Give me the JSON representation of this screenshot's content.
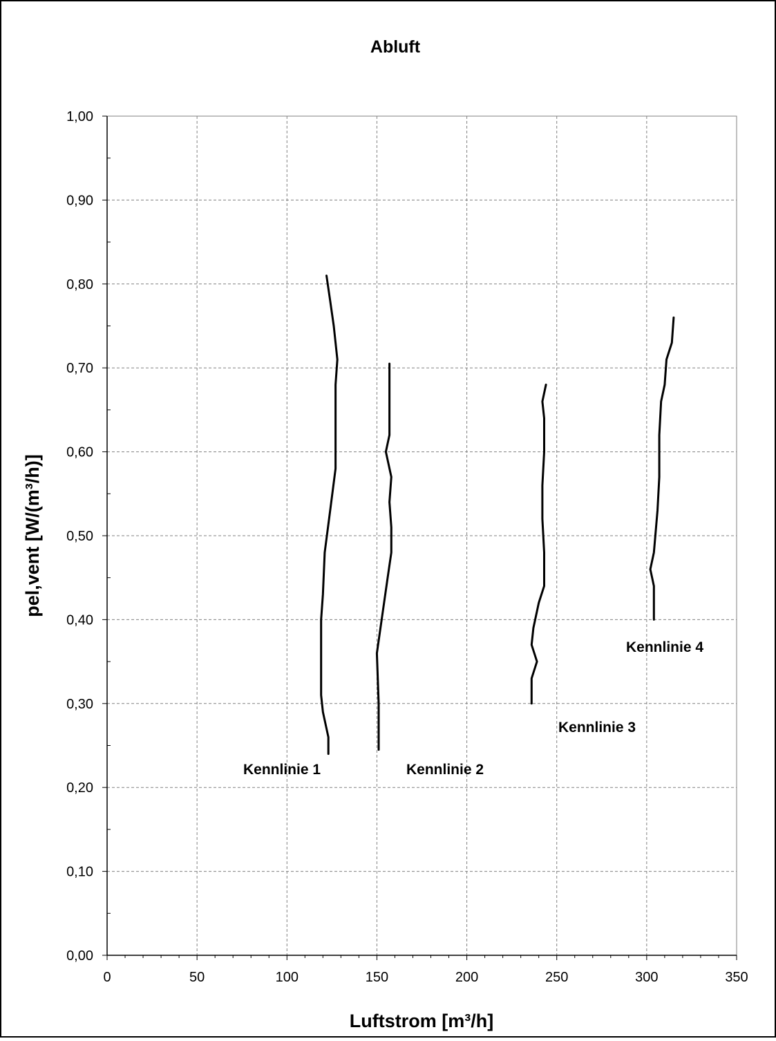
{
  "chart_data": {
    "type": "line",
    "title": "Abluft",
    "xlabel": "Luftstrom [m³/h]",
    "ylabel": "pel,vent [W/(m³/h)]",
    "xlim": [
      0,
      350
    ],
    "ylim": [
      0,
      1
    ],
    "x_ticks": [
      0,
      50,
      100,
      150,
      200,
      250,
      300,
      350
    ],
    "x_tick_labels": [
      "0",
      "50",
      "100",
      "150",
      "200",
      "250",
      "300",
      "350"
    ],
    "y_ticks": [
      0,
      0.1,
      0.2,
      0.3,
      0.4,
      0.5,
      0.6,
      0.7,
      0.8,
      0.9,
      1.0
    ],
    "y_tick_labels": [
      "0,00",
      "0,10",
      "0,20",
      "0,30",
      "0,40",
      "0,50",
      "0,60",
      "0,70",
      "0,80",
      "0,90",
      "1,00"
    ],
    "grid": true,
    "legend": "none",
    "line_color": "#000000",
    "series": [
      {
        "label": "Kennlinie 1",
        "points": [
          [
            123,
            0.24
          ],
          [
            123,
            0.26
          ],
          [
            120,
            0.29
          ],
          [
            119,
            0.31
          ],
          [
            119,
            0.35
          ],
          [
            119,
            0.4
          ],
          [
            120,
            0.43
          ],
          [
            121,
            0.48
          ],
          [
            124,
            0.53
          ],
          [
            127,
            0.58
          ],
          [
            127,
            0.63
          ],
          [
            127,
            0.68
          ],
          [
            128,
            0.71
          ],
          [
            126,
            0.75
          ],
          [
            124,
            0.78
          ],
          [
            122,
            0.81
          ]
        ]
      },
      {
        "label": "Kennlinie 2",
        "points": [
          [
            151,
            0.245
          ],
          [
            151,
            0.3
          ],
          [
            150,
            0.36
          ],
          [
            152,
            0.39
          ],
          [
            154,
            0.42
          ],
          [
            156,
            0.45
          ],
          [
            158,
            0.48
          ],
          [
            158,
            0.51
          ],
          [
            157,
            0.54
          ],
          [
            158,
            0.57
          ],
          [
            155,
            0.6
          ],
          [
            157,
            0.62
          ],
          [
            157,
            0.65
          ],
          [
            157,
            0.68
          ],
          [
            157,
            0.705
          ]
        ]
      },
      {
        "label": "Kennlinie 3",
        "points": [
          [
            236,
            0.3
          ],
          [
            236,
            0.33
          ],
          [
            239,
            0.35
          ],
          [
            236,
            0.37
          ],
          [
            237,
            0.39
          ],
          [
            240,
            0.42
          ],
          [
            243,
            0.44
          ],
          [
            243,
            0.48
          ],
          [
            242,
            0.52
          ],
          [
            242,
            0.56
          ],
          [
            243,
            0.6
          ],
          [
            243,
            0.64
          ],
          [
            242,
            0.66
          ],
          [
            244,
            0.68
          ]
        ]
      },
      {
        "label": "Kennlinie 4",
        "points": [
          [
            304,
            0.4
          ],
          [
            304,
            0.44
          ],
          [
            302,
            0.46
          ],
          [
            304,
            0.48
          ],
          [
            306,
            0.53
          ],
          [
            307,
            0.57
          ],
          [
            307,
            0.62
          ],
          [
            308,
            0.66
          ],
          [
            310,
            0.68
          ],
          [
            311,
            0.71
          ],
          [
            314,
            0.73
          ],
          [
            315,
            0.76
          ]
        ]
      }
    ],
    "annotations": [
      "Kennlinie 1",
      "Kennlinie 2",
      "Kennlinie 3",
      "Kennlinie 4"
    ]
  }
}
